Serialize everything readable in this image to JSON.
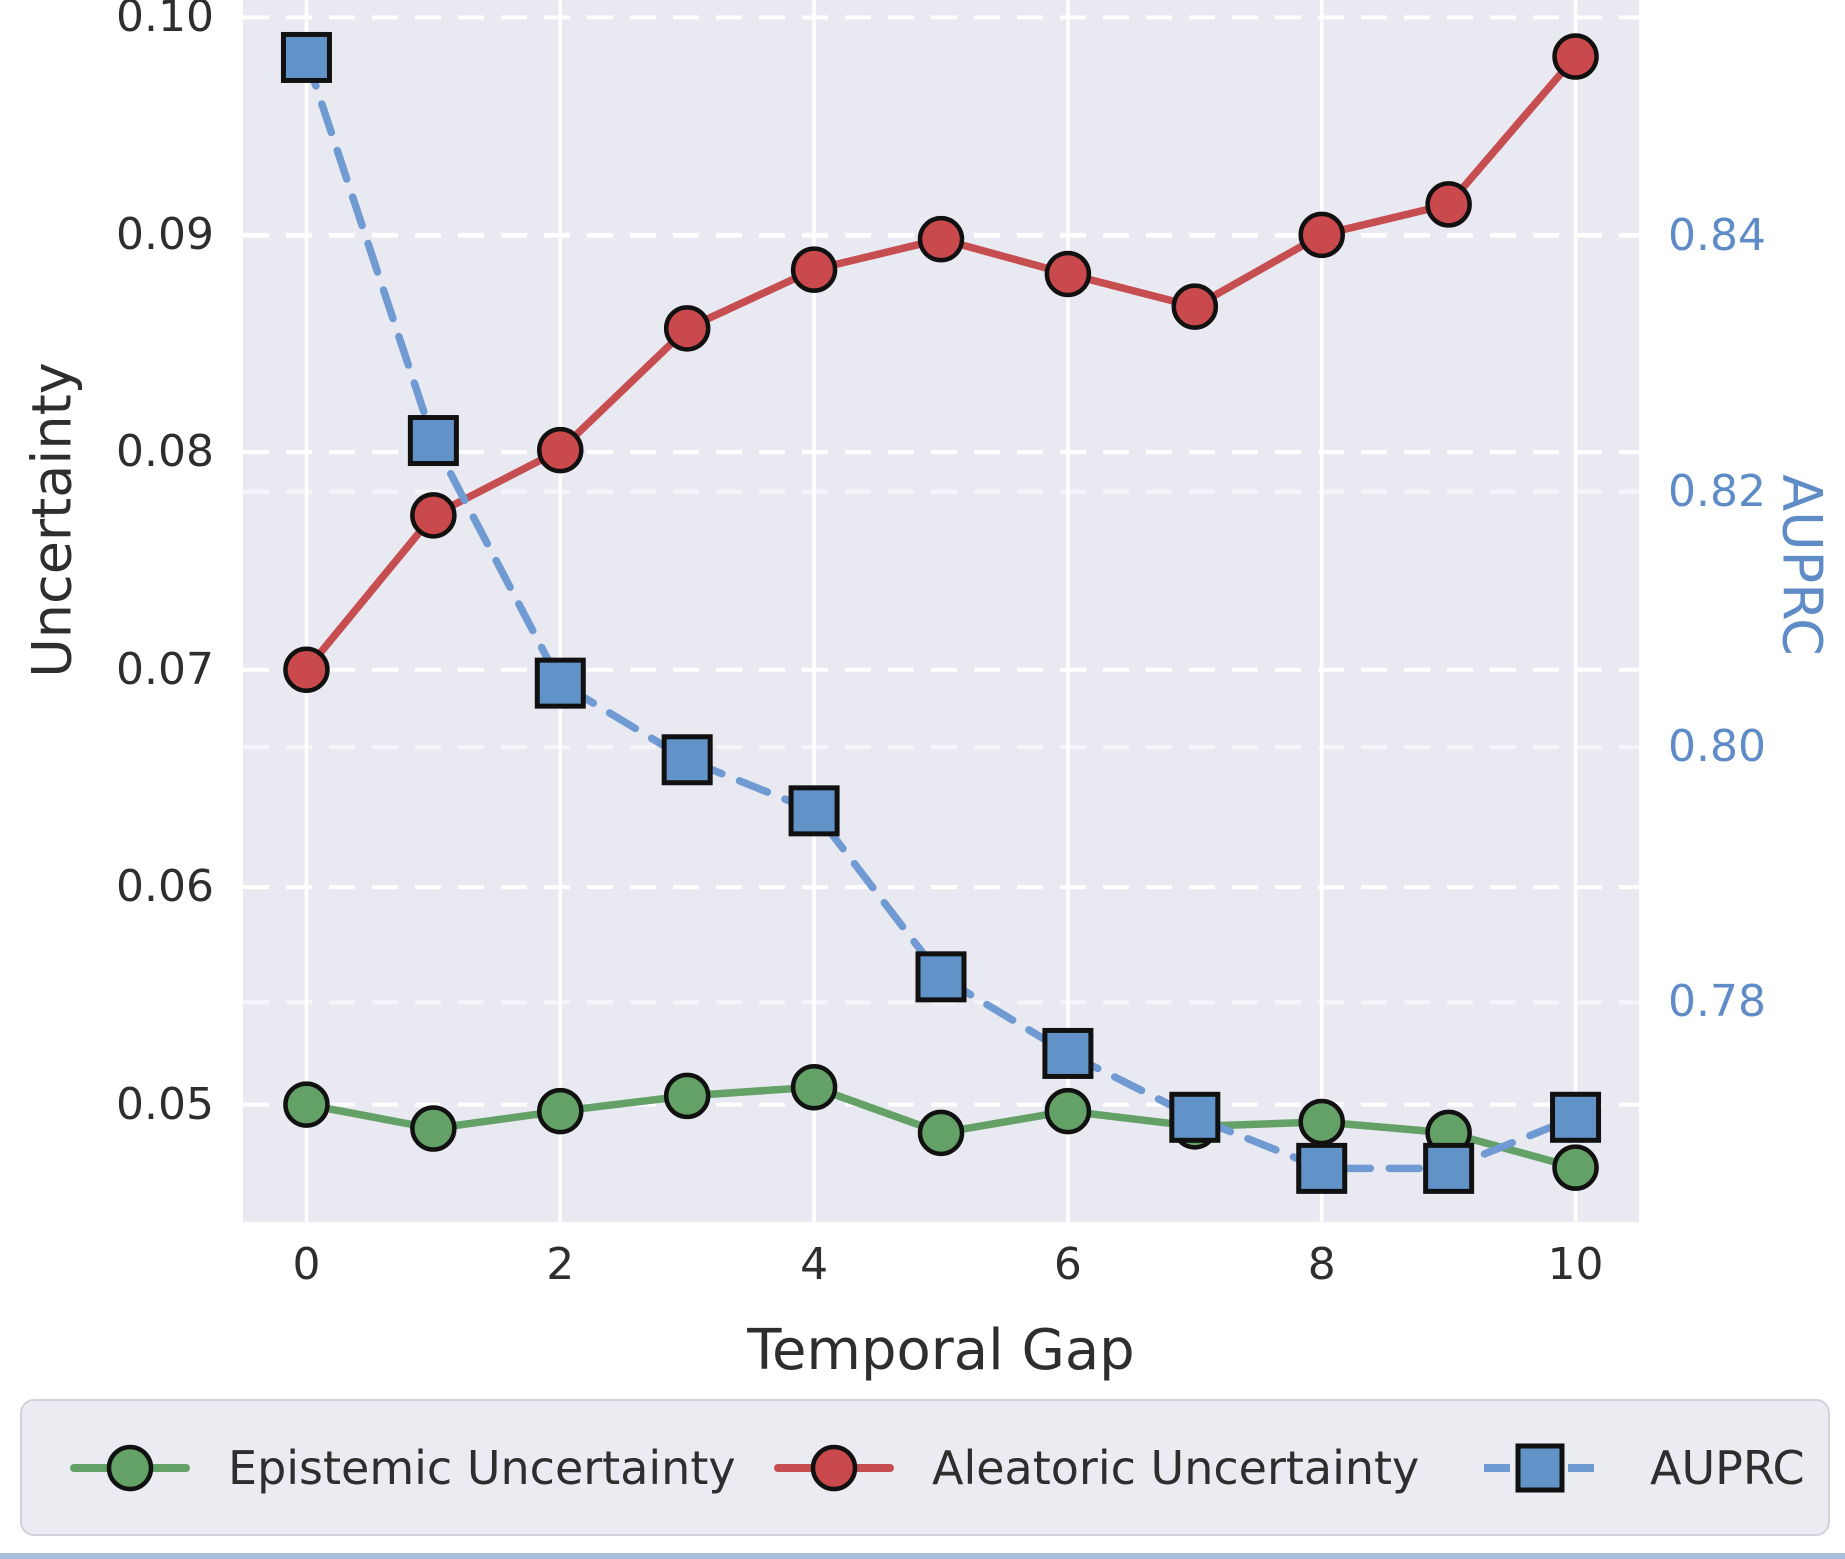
{
  "chart_data": {
    "type": "line",
    "title": "",
    "xlabel": "Temporal Gap",
    "ylabel_left": "Uncertainty",
    "ylabel_right": "AUPRC",
    "x": [
      0,
      1,
      2,
      3,
      4,
      5,
      6,
      7,
      8,
      9,
      10
    ],
    "series": [
      {
        "name": "Epistemic Uncertainty",
        "axis": "left",
        "marker": "circle",
        "linestyle": "solid",
        "line_color": "#64a167",
        "marker_fill": "#64a167",
        "values": [
          0.05,
          0.0489,
          0.0497,
          0.0504,
          0.0508,
          0.0487,
          0.0497,
          0.049,
          0.0492,
          0.0487,
          0.0471
        ]
      },
      {
        "name": "Aleatoric Uncertainty",
        "axis": "left",
        "marker": "circle",
        "linestyle": "solid",
        "line_color": "#c74e50",
        "marker_fill": "#c9494c",
        "values": [
          0.07,
          0.0771,
          0.0801,
          0.0857,
          0.0884,
          0.0898,
          0.0882,
          0.0867,
          0.09,
          0.0914,
          0.0982
        ]
      },
      {
        "name": "AUPRC",
        "axis": "right",
        "marker": "square",
        "linestyle": "dashed",
        "line_color": "#6f9bd2",
        "marker_fill": "#6293c8",
        "values": [
          0.854,
          0.824,
          0.805,
          0.799,
          0.795,
          0.782,
          0.776,
          0.771,
          0.767,
          0.767,
          0.771
        ]
      }
    ],
    "x_ticks": {
      "values": [
        0,
        2,
        4,
        6,
        8,
        10
      ],
      "labels": [
        "0",
        "2",
        "4",
        "6",
        "8",
        "10"
      ]
    },
    "left_ticks": {
      "values": [
        0.05,
        0.06,
        0.07,
        0.08,
        0.09,
        0.1
      ],
      "labels": [
        "0.05",
        "0.06",
        "0.07",
        "0.08",
        "0.09",
        "0.10"
      ]
    },
    "right_ticks": {
      "values": [
        0.78,
        0.8,
        0.82,
        0.84
      ],
      "labels": [
        "0.78",
        "0.80",
        "0.82",
        "0.84"
      ]
    },
    "xlim": [
      -0.5,
      10.5
    ],
    "ylim_left": [
      0.0446,
      0.1008
    ],
    "ylim_right": [
      0.7628,
      0.8585
    ],
    "grid": true,
    "legend_position": "bottom"
  },
  "style": {
    "plot_bg": "#e9e9f2",
    "grid_major": "#ffffff",
    "grid_right_faint": "rgba(255,255,255,0.55)",
    "marker_edge": "#111111",
    "tick_color_left": "#2e2e2e",
    "tick_color_right": "#5f8cc6"
  }
}
